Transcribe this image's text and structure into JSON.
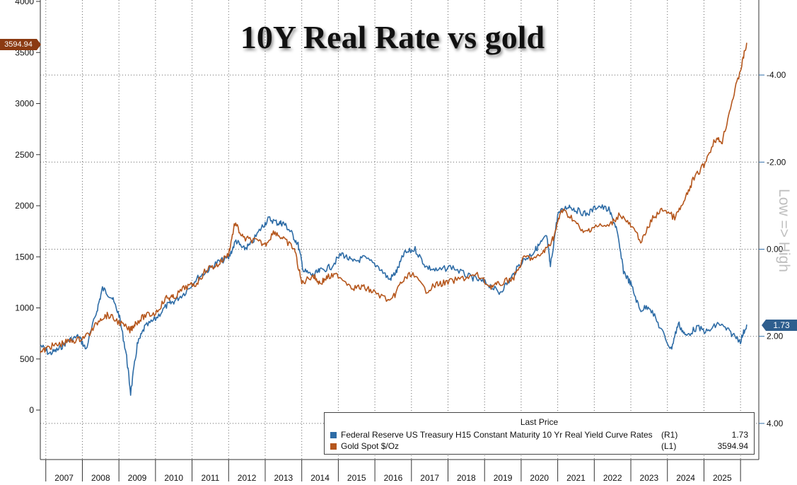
{
  "title": "10Y Real Rate vs gold",
  "left_last_value": "3594.94",
  "right_last_value": "1.73",
  "right_axis_label": "Low => High",
  "legend": {
    "header": "Last Price",
    "items": [
      {
        "name": "Federal Reserve US Treasury H15 Constant Maturity 10 Yr Real Yield Curve Rates",
        "axis": "(R1)",
        "value": "1.73",
        "color": "#2e6ca6"
      },
      {
        "name": "Gold Spot $/Oz",
        "axis": "(L1)",
        "value": "3594.94",
        "color": "#b5561c"
      }
    ]
  },
  "chart_data": {
    "type": "line",
    "title": "10Y Real Rate vs gold",
    "left_axis": {
      "ticks": [
        "0",
        "500",
        "1000",
        "1500",
        "2000",
        "2500",
        "3000",
        "3500",
        "4000"
      ],
      "ylim": [
        -500,
        4000
      ]
    },
    "right_axis": {
      "inverted": true,
      "ticks": [
        "-4.00",
        "-2.00",
        "0.00",
        "2.00",
        "4.00"
      ],
      "ylim": [
        -5.5,
        4.5
      ],
      "label": "Low => High"
    },
    "x_axis": {
      "tick_labels": [
        "2007",
        "2008",
        "2009",
        "2010",
        "2011",
        "2012",
        "2013",
        "2014",
        "2015",
        "2016",
        "2017",
        "2018",
        "2019",
        "2020",
        "2021",
        "2022",
        "2023",
        "2024",
        "2025"
      ],
      "xlim": [
        2006.35,
        2026.0
      ]
    },
    "grid": true,
    "series": [
      {
        "name": "Gold Spot $/Oz",
        "axis": "left",
        "color": "#b5561c",
        "x": [
          2006.35,
          2006.6,
          2006.85,
          2007.1,
          2007.4,
          2007.7,
          2008.0,
          2008.2,
          2008.5,
          2008.8,
          2008.95,
          2009.2,
          2009.5,
          2009.8,
          2010.0,
          2010.3,
          2010.6,
          2010.9,
          2011.2,
          2011.5,
          2011.67,
          2011.9,
          2012.2,
          2012.5,
          2012.75,
          2013.0,
          2013.3,
          2013.5,
          2013.8,
          2014.0,
          2014.2,
          2014.5,
          2014.9,
          2015.2,
          2015.5,
          2015.95,
          2016.2,
          2016.5,
          2016.9,
          2017.2,
          2017.5,
          2017.9,
          2018.3,
          2018.65,
          2018.9,
          2019.3,
          2019.6,
          2019.9,
          2020.2,
          2020.4,
          2020.6,
          2020.9,
          2021.2,
          2021.5,
          2021.9,
          2022.2,
          2022.5,
          2022.8,
          2023.1,
          2023.4,
          2023.7,
          2023.95,
          2024.2,
          2024.5,
          2024.8,
          2025.0,
          2025.25,
          2025.5,
          2025.67
        ],
        "y": [
          560,
          620,
          640,
          670,
          690,
          750,
          900,
          930,
          860,
          780,
          850,
          920,
          950,
          1100,
          1100,
          1200,
          1230,
          1380,
          1420,
          1530,
          1830,
          1680,
          1660,
          1620,
          1750,
          1670,
          1580,
          1240,
          1320,
          1240,
          1300,
          1320,
          1200,
          1200,
          1150,
          1060,
          1240,
          1340,
          1170,
          1230,
          1250,
          1290,
          1320,
          1210,
          1230,
          1300,
          1500,
          1480,
          1580,
          1700,
          1960,
          1880,
          1730,
          1800,
          1800,
          1920,
          1800,
          1650,
          1880,
          1970,
          1880,
          2030,
          2250,
          2400,
          2650,
          2630,
          3000,
          3330,
          3595
        ]
      },
      {
        "name": "Federal Reserve US Treasury H15 Constant Maturity 10 Yr Real Yield Curve Rates",
        "axis": "right",
        "color": "#2e6ca6",
        "x": [
          2006.35,
          2006.6,
          2006.85,
          2007.1,
          2007.4,
          2007.6,
          2007.9,
          2008.05,
          2008.3,
          2008.5,
          2008.7,
          2008.82,
          2009.0,
          2009.2,
          2009.5,
          2009.8,
          2010.0,
          2010.3,
          2010.6,
          2010.9,
          2011.2,
          2011.5,
          2011.7,
          2011.9,
          2012.1,
          2012.4,
          2012.6,
          2012.85,
          2013.0,
          2013.2,
          2013.4,
          2013.55,
          2013.8,
          2014.0,
          2014.3,
          2014.6,
          2014.9,
          2015.2,
          2015.6,
          2015.9,
          2016.1,
          2016.3,
          2016.6,
          2016.9,
          2017.2,
          2017.6,
          2018.0,
          2018.3,
          2018.6,
          2018.9,
          2019.2,
          2019.5,
          2019.8,
          2020.0,
          2020.2,
          2020.3,
          2020.5,
          2020.8,
          2021.0,
          2021.3,
          2021.6,
          2021.9,
          2022.1,
          2022.3,
          2022.5,
          2022.75,
          2023.0,
          2023.3,
          2023.6,
          2023.8,
          2024.0,
          2024.3,
          2024.6,
          2024.9,
          2025.2,
          2025.5,
          2025.67
        ],
        "y": [
          2.2,
          2.4,
          2.3,
          2.1,
          2.0,
          2.3,
          1.4,
          0.9,
          1.1,
          1.5,
          2.4,
          3.3,
          2.2,
          1.8,
          1.6,
          1.3,
          1.2,
          1.0,
          0.7,
          0.5,
          0.3,
          0.2,
          -0.2,
          0.0,
          -0.1,
          -0.5,
          -0.7,
          -0.6,
          -0.6,
          -0.4,
          -0.1,
          0.5,
          0.6,
          0.5,
          0.4,
          0.1,
          0.3,
          0.2,
          0.4,
          0.7,
          0.5,
          0.1,
          0.0,
          0.4,
          0.5,
          0.4,
          0.6,
          0.7,
          0.8,
          1.0,
          0.7,
          0.3,
          0.1,
          -0.1,
          -0.3,
          0.4,
          -0.8,
          -1.0,
          -0.9,
          -0.8,
          -1.0,
          -0.9,
          -0.5,
          0.5,
          0.8,
          1.4,
          1.3,
          1.8,
          2.3,
          1.7,
          2.0,
          1.8,
          1.9,
          1.7,
          1.9,
          2.1,
          1.73
        ]
      }
    ]
  }
}
